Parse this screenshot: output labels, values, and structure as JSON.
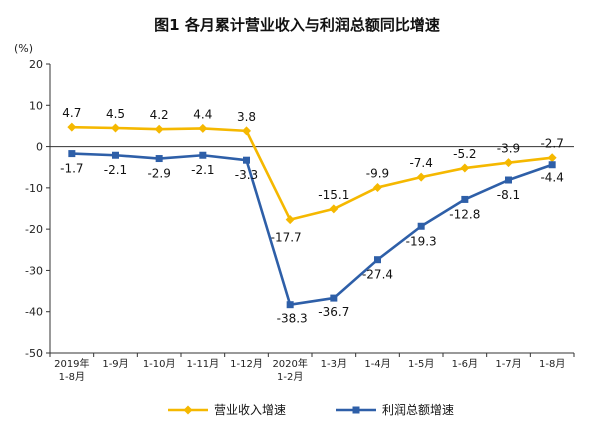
{
  "chart_data": {
    "type": "line",
    "title": "图1  各月累计营业收入与利润总额同比增速",
    "unit_label": "(%)",
    "ylim": [
      -50,
      20
    ],
    "yticks": [
      "20",
      "10",
      "0",
      "-10",
      "-20",
      "-30",
      "-40",
      "-50"
    ],
    "ytick_values": [
      20,
      10,
      0,
      -10,
      -20,
      -30,
      -40,
      -50
    ],
    "categories": [
      [
        "2019年",
        "1-8月"
      ],
      [
        "1-9月"
      ],
      [
        "1-10月"
      ],
      [
        "1-11月"
      ],
      [
        "1-12月"
      ],
      [
        "2020年",
        "1-2月"
      ],
      [
        "1-3月"
      ],
      [
        "1-4月"
      ],
      [
        "1-5月"
      ],
      [
        "1-6月"
      ],
      [
        "1-7月"
      ],
      [
        "1-8月"
      ]
    ],
    "series": [
      {
        "name": "营业收入增速",
        "color": "#F5B800",
        "marker": "diamond",
        "values": [
          4.7,
          4.5,
          4.2,
          4.4,
          3.8,
          -17.7,
          -15.1,
          -9.9,
          -7.4,
          -5.2,
          -3.9,
          -2.7
        ],
        "labels": [
          "4.7",
          "4.5",
          "4.2",
          "4.4",
          "3.8",
          "-17.7",
          "-15.1",
          "-9.9",
          "-7.4",
          "-5.2",
          "-3.9",
          "-2.7"
        ]
      },
      {
        "name": "利润总额增速",
        "color": "#2E5FA8",
        "marker": "square",
        "values": [
          -1.7,
          -2.1,
          -2.9,
          -2.1,
          -3.3,
          -38.3,
          -36.7,
          -27.4,
          -19.3,
          -12.8,
          -8.1,
          -4.4
        ],
        "labels": [
          "-1.7",
          "-2.1",
          "-2.9",
          "-2.1",
          "-3.3",
          "-38.3",
          "-36.7",
          "-27.4",
          "-19.3",
          "-12.8",
          "-8.1",
          "-4.4"
        ]
      }
    ],
    "legend_position": "bottom",
    "grid": false
  }
}
